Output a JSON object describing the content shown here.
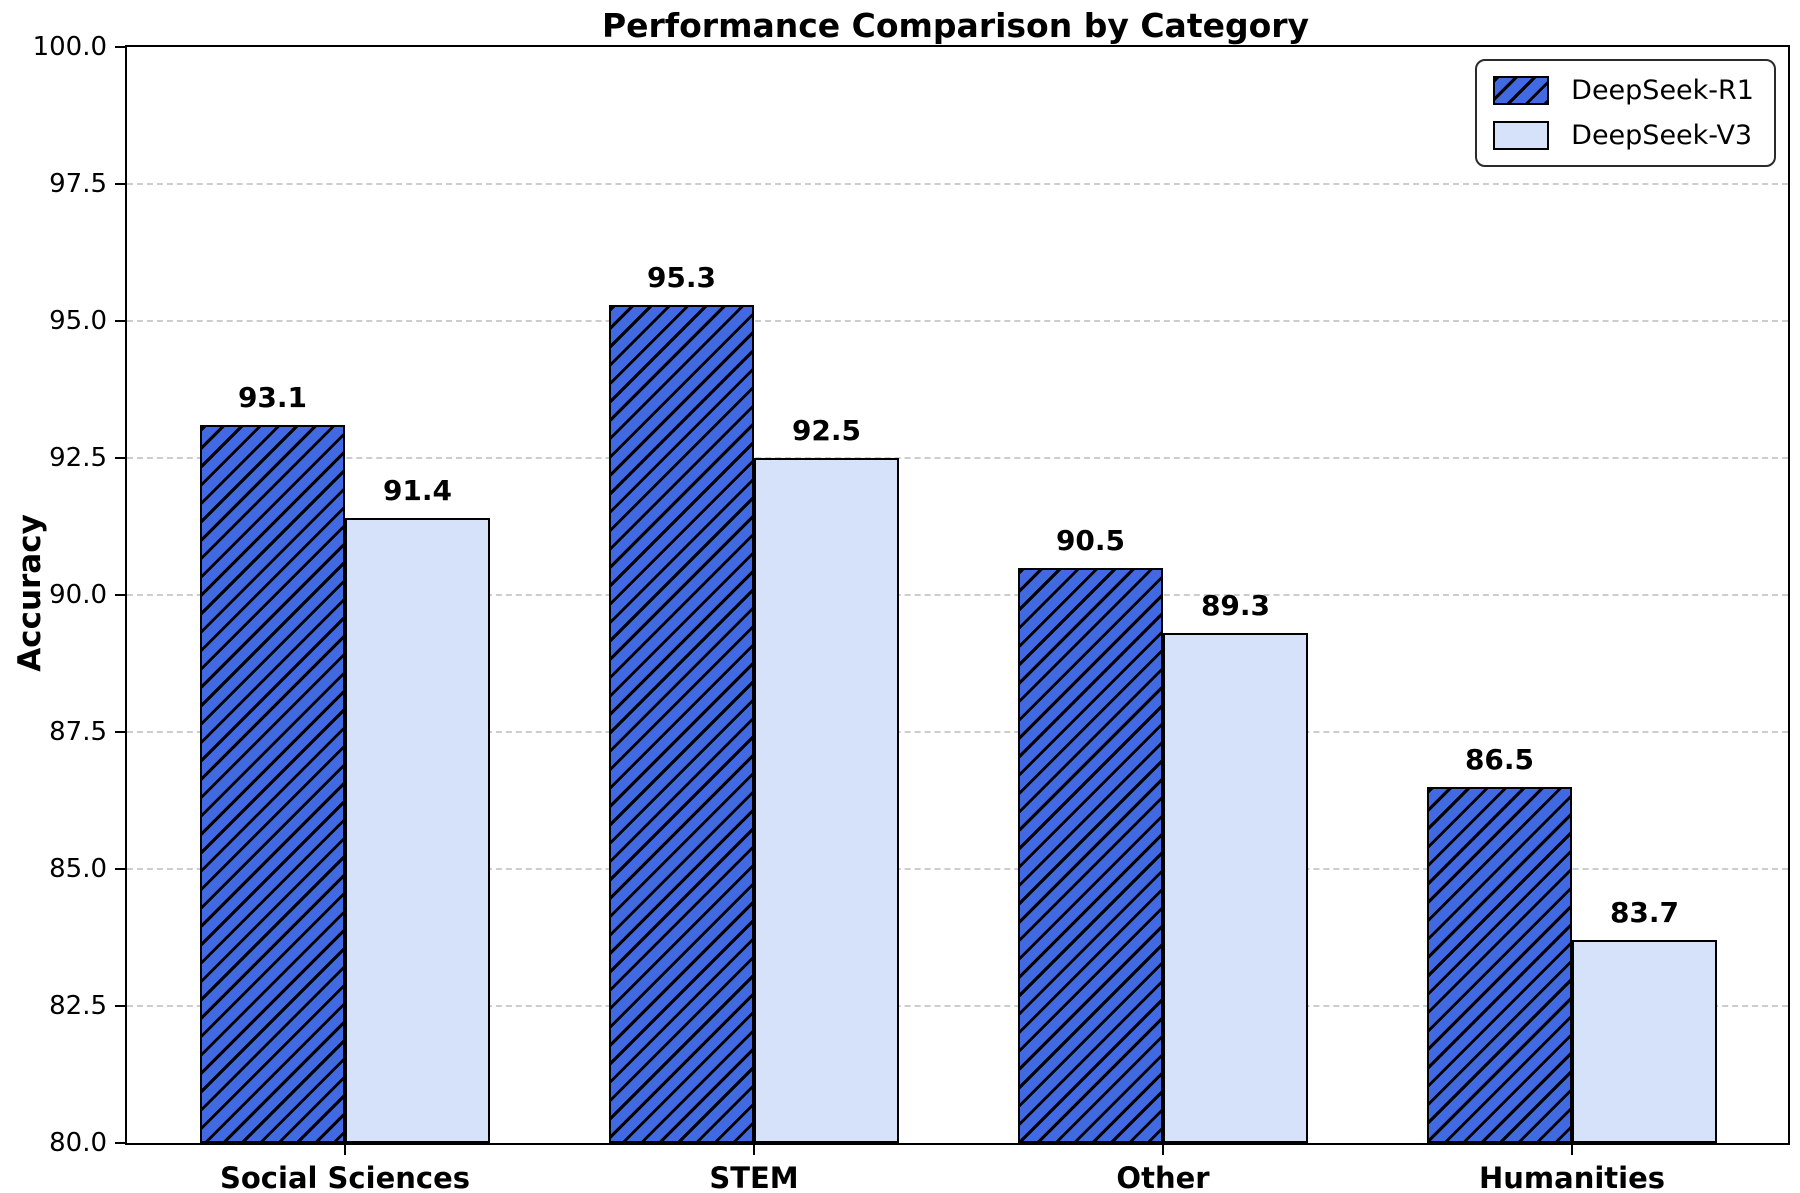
{
  "title": "Performance Comparison by Category",
  "chart_data": {
    "type": "bar",
    "title": "Performance Comparison by Category",
    "categories": [
      "Social Sciences",
      "STEM",
      "Other",
      "Humanities"
    ],
    "series": [
      {
        "name": "DeepSeek-R1",
        "values": [
          93.1,
          95.3,
          90.5,
          86.5
        ],
        "color": "#4169E1",
        "hatch": "diagonal",
        "hatch_color": "#000000"
      },
      {
        "name": "DeepSeek-V3",
        "values": [
          91.4,
          92.5,
          89.3,
          83.7
        ],
        "color": "#D6E2FA",
        "hatch": "none"
      }
    ],
    "xlabel": "",
    "ylabel": "Accuracy",
    "ylim": [
      80.0,
      100.0
    ],
    "yticks": [
      80.0,
      82.5,
      85.0,
      87.5,
      90.0,
      92.5,
      95.0,
      97.5,
      100.0
    ],
    "ytick_format_decimals": 1,
    "grid": "horizontal-dashed",
    "grid_color": "#cdcdcd",
    "legend_position": "upper right",
    "value_labels": true,
    "bar_edge_color": "#000000",
    "text_color": "#000000"
  }
}
